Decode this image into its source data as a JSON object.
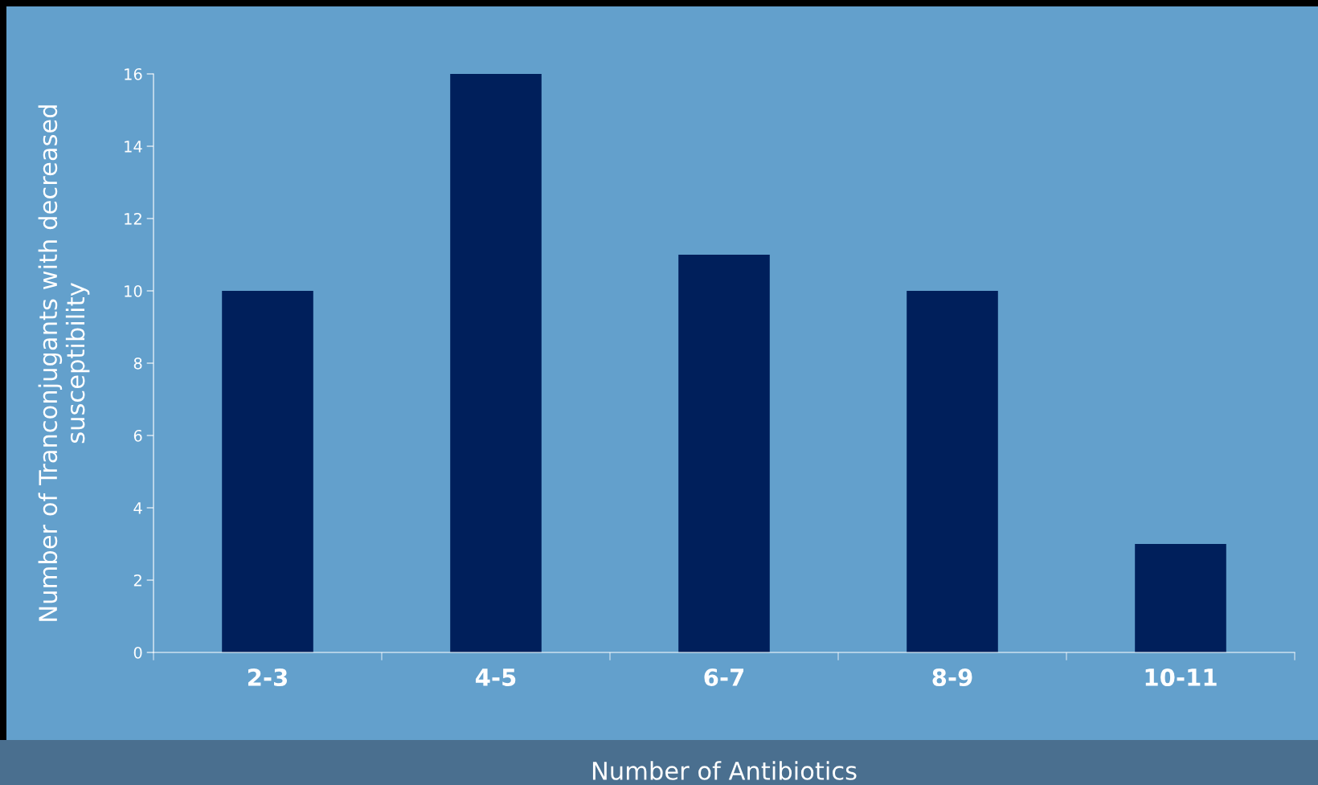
{
  "chart_data": {
    "type": "bar",
    "xlabel": "Number of Antibiotics",
    "ylabel": "Number of Tranconjugants with decreased\nsusceptibility",
    "categories": [
      "2-3",
      "4-5",
      "6-7",
      "8-9",
      "10-11"
    ],
    "values": [
      10,
      16,
      11,
      10,
      3
    ],
    "color": "#001f5b",
    "ylim": [
      0,
      16
    ],
    "yticks": [
      0,
      2,
      4,
      6,
      8,
      10,
      12,
      14,
      16
    ],
    "grid": false,
    "legend": false
  }
}
